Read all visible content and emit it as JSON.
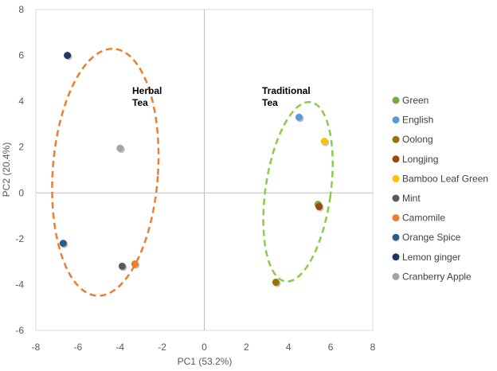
{
  "chart_data": {
    "type": "scatter",
    "title": "",
    "xlabel": "PC1 (53.2%)",
    "ylabel": "PC2 (20.4%)",
    "xlim": [
      -8,
      8
    ],
    "ylim": [
      -6,
      8
    ],
    "xticks": [
      -8,
      -6,
      -4,
      -2,
      0,
      2,
      4,
      6,
      8
    ],
    "yticks": [
      -6,
      -4,
      -2,
      0,
      2,
      4,
      6,
      8
    ],
    "grid": false,
    "legend_position": "right",
    "series": [
      {
        "name": "Green",
        "color": "#70AD47",
        "points": [
          [
            5.4,
            -0.5
          ]
        ]
      },
      {
        "name": "English",
        "color": "#5B9BD5",
        "points": [
          [
            4.5,
            3.3
          ]
        ]
      },
      {
        "name": "Oolong",
        "color": "#997300",
        "points": [
          [
            3.4,
            -3.9
          ]
        ]
      },
      {
        "name": "Longjing",
        "color": "#9E480E",
        "points": [
          [
            5.45,
            -0.6
          ]
        ]
      },
      {
        "name": "Bamboo Leaf Green",
        "color": "#FFC000",
        "points": [
          [
            5.7,
            2.25
          ]
        ]
      },
      {
        "name": "Mint",
        "color": "#595959",
        "points": [
          [
            -3.9,
            -3.2
          ]
        ]
      },
      {
        "name": "Camomile",
        "color": "#ED7D31",
        "points": [
          [
            -3.3,
            -3.1
          ]
        ]
      },
      {
        "name": "Orange Spice",
        "color": "#255E91",
        "points": [
          [
            -6.7,
            -2.2
          ]
        ]
      },
      {
        "name": "Lemon ginger",
        "color": "#1F3864",
        "points": [
          [
            -6.5,
            6.0
          ]
        ]
      },
      {
        "name": "Cranberry Apple",
        "color": "#A5A5A5",
        "points": [
          [
            -4.0,
            1.95
          ]
        ]
      }
    ],
    "annotations": [
      {
        "lines": [
          "Herbal",
          "Tea"
        ]
      },
      {
        "lines": [
          "Traditional",
          "Tea"
        ]
      }
    ],
    "ellipses": [
      {
        "color": "#ED7D31",
        "center": [
          -4.7,
          0.9
        ],
        "rx": 2.5,
        "ry": 5.4,
        "angle_deg": 4
      },
      {
        "color": "#8CCB48",
        "center": [
          4.45,
          0.05
        ],
        "rx": 1.55,
        "ry": 3.95,
        "angle_deg": 8
      }
    ]
  }
}
